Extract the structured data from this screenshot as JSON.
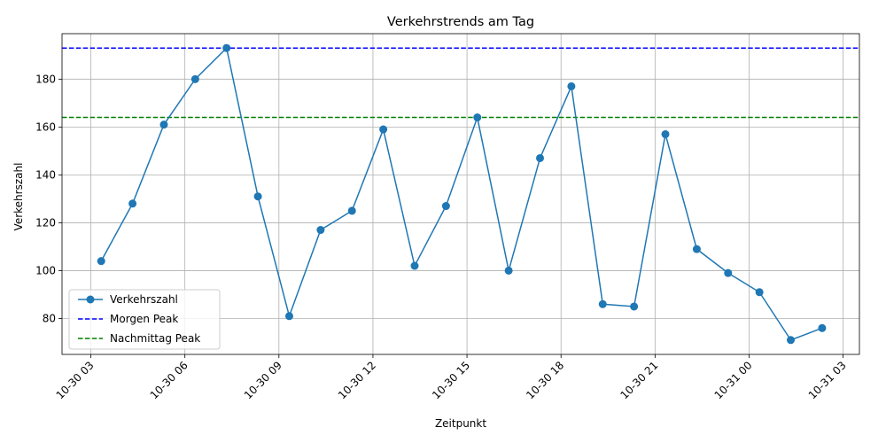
{
  "chart_data": {
    "type": "line",
    "title": "Verkehrstrends am Tag",
    "xlabel": "Zeitpunkt",
    "ylabel": "Verkehrszahl",
    "grid": true,
    "legend_position": "bottom-left",
    "x_tick_labels": [
      "10-30 03",
      "10-30 06",
      "10-30 09",
      "10-30 12",
      "10-30 15",
      "10-30 18",
      "10-30 21",
      "10-31 00",
      "10-31 03"
    ],
    "x_tick_hours": [
      3,
      6,
      9,
      12,
      15,
      18,
      21,
      24,
      27
    ],
    "xlim_hours": [
      2.08,
      27.52
    ],
    "y_ticks": [
      80,
      100,
      120,
      140,
      160,
      180
    ],
    "ylim": [
      65,
      199
    ],
    "series": [
      {
        "name": "Verkehrszahl",
        "color": "#1f77b4",
        "style": "line-marker",
        "x_hours": [
          3.33,
          4.33,
          5.33,
          6.33,
          7.33,
          8.33,
          9.33,
          10.33,
          11.33,
          12.33,
          13.33,
          14.33,
          15.33,
          16.33,
          17.33,
          18.33,
          19.33,
          20.33,
          21.33,
          22.33,
          23.33,
          24.33,
          25.33,
          26.33
        ],
        "values": [
          104,
          128,
          161,
          180,
          193,
          131,
          81,
          117,
          125,
          159,
          102,
          127,
          164,
          100,
          147,
          177,
          86,
          85,
          157,
          109,
          99,
          91,
          71,
          76
        ]
      },
      {
        "name": "Morgen Peak",
        "color": "#0000ff",
        "style": "hline-dashed",
        "value": 193
      },
      {
        "name": "Nachmittag Peak",
        "color": "#008000",
        "style": "hline-dashed",
        "value": 164
      }
    ]
  }
}
